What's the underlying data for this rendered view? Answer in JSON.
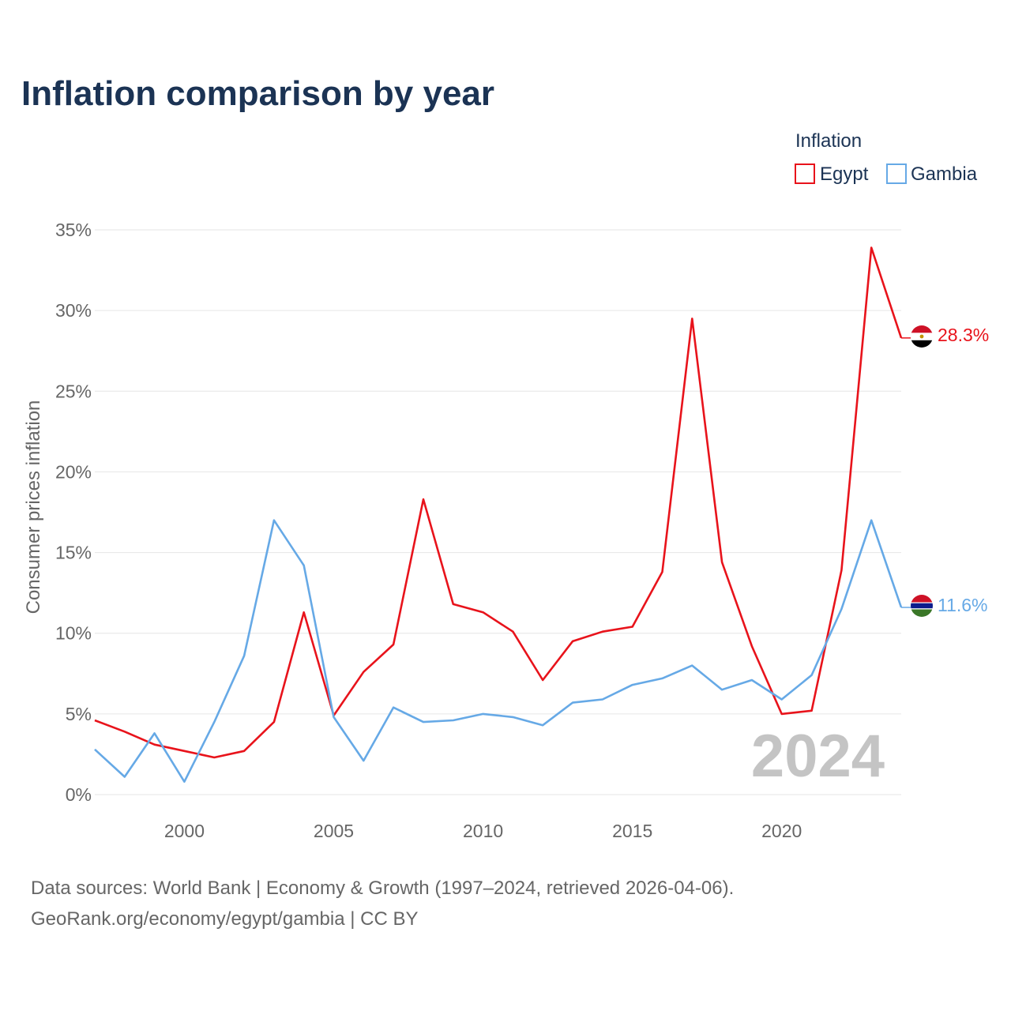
{
  "colors": {
    "egypt": "#e8131b",
    "gambia": "#66a9e6",
    "title": "#1b3354",
    "muted": "#666666"
  },
  "chart_data": {
    "type": "line",
    "title": "Inflation comparison by year",
    "ylabel": "Consumer prices inflation",
    "xlabel": "",
    "legend_title": "Inflation",
    "legend_position": "top-right",
    "year_label": "2024",
    "x": [
      1997,
      1998,
      1999,
      2000,
      2001,
      2002,
      2003,
      2004,
      2005,
      2006,
      2007,
      2008,
      2009,
      2010,
      2011,
      2012,
      2013,
      2014,
      2015,
      2016,
      2017,
      2018,
      2019,
      2020,
      2021,
      2022,
      2023,
      2024
    ],
    "xlim": [
      1997,
      2024
    ],
    "ylim": [
      0,
      35
    ],
    "x_ticks": [
      2000,
      2005,
      2010,
      2015,
      2020
    ],
    "x_tick_labels": [
      "2000",
      "2005",
      "2010",
      "2015",
      "2020"
    ],
    "y_ticks": [
      0,
      5,
      10,
      15,
      20,
      25,
      30,
      35
    ],
    "y_tick_labels": [
      "0%",
      "5%",
      "10%",
      "15%",
      "20%",
      "25%",
      "30%",
      "35%"
    ],
    "series": [
      {
        "name": "Egypt",
        "key": "egypt",
        "end_label": "28.3%",
        "values": [
          4.6,
          3.9,
          3.1,
          2.7,
          2.3,
          2.7,
          4.5,
          11.3,
          4.9,
          7.6,
          9.3,
          18.3,
          11.8,
          11.3,
          10.1,
          7.1,
          9.5,
          10.1,
          10.4,
          13.8,
          29.5,
          14.4,
          9.2,
          5.0,
          5.2,
          13.9,
          33.9,
          28.3
        ]
      },
      {
        "name": "Gambia",
        "key": "gambia",
        "end_label": "11.6%",
        "values": [
          2.8,
          1.1,
          3.8,
          0.8,
          4.5,
          8.6,
          17.0,
          14.2,
          4.8,
          2.1,
          5.4,
          4.5,
          4.6,
          5.0,
          4.8,
          4.3,
          5.7,
          5.9,
          6.8,
          7.2,
          8.0,
          6.5,
          7.1,
          5.9,
          7.4,
          11.5,
          17.0,
          11.6
        ]
      }
    ]
  },
  "footer": {
    "line1": "Data sources: World Bank | Economy & Growth (1997–2024, retrieved 2026-04-06).",
    "line2": "GeoRank.org/economy/egypt/gambia | CC BY"
  }
}
